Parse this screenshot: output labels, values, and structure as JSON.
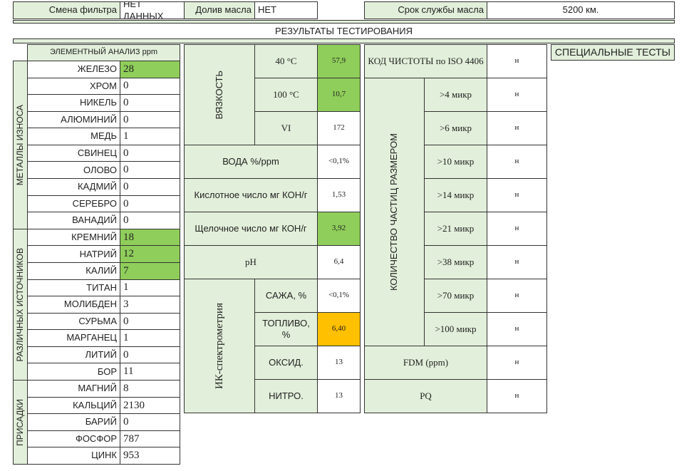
{
  "header": {
    "fields": [
      {
        "label": "Смена фильтра",
        "value": "НЕТ ДАННЫХ"
      },
      {
        "label": "Долив масла",
        "value": "НЕТ"
      },
      {
        "label": "Срок службы масла",
        "value": "5200 км."
      }
    ],
    "title": "РЕЗУЛЬТАТЫ ТЕСТИРОВАНИЯ"
  },
  "elements": {
    "heading": "ЭЛЕМЕНТНЫЙ АНАЛИЗ ppm",
    "groups": [
      {
        "label": "МЕТАЛЛЫ ИЗНОСА",
        "rows": [
          {
            "name": "ЖЕЛЕЗО",
            "value": 28,
            "color": "#8fce5a"
          },
          {
            "name": "ХРОМ",
            "value": 0
          },
          {
            "name": "НИКЕЛЬ",
            "value": 0
          },
          {
            "name": "АЛЮМИНИЙ",
            "value": 0
          },
          {
            "name": "МЕДЬ",
            "value": 1
          },
          {
            "name": "СВИНЕЦ",
            "value": 0
          },
          {
            "name": "ОЛОВО",
            "value": 0
          },
          {
            "name": "КАДМИЙ",
            "value": 0
          },
          {
            "name": "СЕРЕБРО",
            "value": 0
          },
          {
            "name": "ВАНАДИЙ",
            "value": 0
          }
        ]
      },
      {
        "label": "РАЗЛИЧНЫХ ИСТОЧНИКОВ",
        "rows": [
          {
            "name": "КРЕМНИЙ",
            "value": 18,
            "color": "#8fce5a"
          },
          {
            "name": "НАТРИЙ",
            "value": 12,
            "color": "#8fce5a"
          },
          {
            "name": "КАЛИЙ",
            "value": 7,
            "color": "#8fce5a"
          },
          {
            "name": "ТИТАН",
            "value": 1
          },
          {
            "name": "МОЛИБДЕН",
            "value": 3
          },
          {
            "name": "СУРЬМА",
            "value": 0
          },
          {
            "name": "МАРГАНЕЦ",
            "value": 1
          },
          {
            "name": "ЛИТИЙ",
            "value": 0
          },
          {
            "name": "БОР",
            "value": 11
          }
        ]
      },
      {
        "label": "ПРИСАДКИ",
        "rows": [
          {
            "name": "МАГНИЙ",
            "value": 8
          },
          {
            "name": "КАЛЬЦИЙ",
            "value": 2130
          },
          {
            "name": "БАРИЙ",
            "value": 0
          },
          {
            "name": "ФОСФОР",
            "value": 787
          },
          {
            "name": "ЦИНК",
            "value": 953
          }
        ]
      }
    ]
  },
  "properties": {
    "viscosity": {
      "label": "ВЯЗКОСТЬ",
      "rows": [
        {
          "name": "40 °C",
          "value": "57,9",
          "color": "#8fce5a"
        },
        {
          "name": "100 °C",
          "value": "10,7",
          "color": "#8fce5a"
        },
        {
          "name": "VI",
          "value": 172
        }
      ]
    },
    "rows": [
      {
        "name": "ВОДА %/ppm",
        "value": "<0,1%"
      },
      {
        "name": "Кислотное число мг КОН/г",
        "value": "1,53"
      },
      {
        "name": "Щелочное число мг КОН/г",
        "value": "3,92",
        "color": "#8fce5a"
      },
      {
        "name": "pH",
        "value": "6,4"
      }
    ],
    "ir": {
      "label": "ИК-спектрометрия",
      "rows": [
        {
          "name": "САЖА, %",
          "value": "<0,1%"
        },
        {
          "name": "ТОПЛИВО, %",
          "value": "6,40",
          "color": "#ffc000"
        },
        {
          "name": "ОКСИД.",
          "value": 13
        },
        {
          "name": "НИТРО.",
          "value": 13
        }
      ]
    }
  },
  "cleanliness": {
    "code": {
      "name": "КОД ЧИСТОТЫ по ISO 4406",
      "value": "н"
    },
    "particles": {
      "label": "КОЛИЧЕСТВО ЧАСТИЦ РАЗМЕРОМ",
      "rows": [
        {
          "name": ">4 микр",
          "value": "н"
        },
        {
          "name": ">6 микр",
          "value": "н"
        },
        {
          "name": ">10 микр",
          "value": "н"
        },
        {
          "name": ">14 микр",
          "value": "н"
        },
        {
          "name": ">21 микр",
          "value": "н"
        },
        {
          "name": ">38 микр",
          "value": "н"
        },
        {
          "name": ">70 микр",
          "value": "н"
        },
        {
          "name": ">100 микр",
          "value": "н"
        }
      ]
    },
    "fdm": {
      "name": "FDM (ppm)",
      "value": "н"
    },
    "pq": {
      "name": "PQ",
      "value": "н"
    }
  },
  "special": "СПЕЦИАЛЬНЫЕ ТЕСТЫ"
}
